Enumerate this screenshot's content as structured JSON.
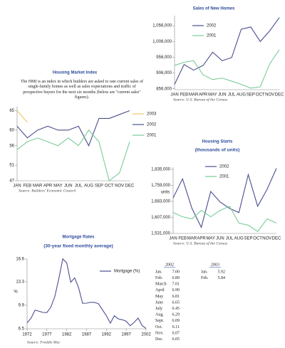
{
  "chart_data": [
    {
      "type": "line",
      "title": "Sales of New Homes",
      "source": "Source: U.S. Bureau of the Census",
      "categories": [
        "JAN",
        "FEB",
        "MAR",
        "APR",
        "MAY",
        "JUN",
        "JUL",
        "AUG",
        "SEP",
        "OCT",
        "NOV",
        "DEC"
      ],
      "series": [
        {
          "name": "2002",
          "color": "#4b4f8e",
          "values": [
            870000,
            933000,
            915000,
            930000,
            972000,
            945000,
            955000,
            1045000,
            1052000,
            1006000,
            1040000,
            1082000
          ]
        },
        {
          "name": "2001",
          "color": "#79cc95",
          "values": [
            930000,
            940000,
            945000,
            900000,
            885000,
            890000,
            880000,
            870000,
            858000,
            862000,
            935000,
            980000
          ]
        }
      ],
      "ylim": [
        853000,
        1088000
      ],
      "yticks": [
        {
          "value": 856000,
          "label": "856,000"
        },
        {
          "value": 906000,
          "label": "906,000"
        },
        {
          "value": 956000,
          "label": "956,000"
        },
        {
          "value": 1006000,
          "label": "1,006,000"
        },
        {
          "value": 1056000,
          "label": "1,056,000"
        }
      ],
      "legend": "top-left"
    },
    {
      "type": "line",
      "title": "Housing Market Index",
      "source": "Source: Builders' Economic Council",
      "description": "The HMI is an index in which builders are asked to rate current sales of single-family homes as well as sales expectations and traffic of prospective buyers for the next six months (below are \"current sales\" figures).",
      "categories": [
        "JAN",
        "FEB",
        "MAR",
        "APR",
        "MAY",
        "JUN",
        "JUL",
        "AUG",
        "SEP",
        "OCT",
        "NOV",
        "DEC"
      ],
      "series": [
        {
          "name": "2003",
          "color": "#f2c46c",
          "values": [
            65,
            62,
            null,
            null,
            null,
            null,
            null,
            null,
            null,
            null,
            null,
            null
          ]
        },
        {
          "name": "2002",
          "color": "#4b4f8e",
          "values": [
            61,
            58,
            60,
            61,
            60,
            60,
            61,
            56,
            63,
            63,
            64,
            65
          ]
        },
        {
          "name": "2001",
          "color": "#79cc95",
          "values": [
            55,
            57,
            58,
            57,
            56,
            58,
            56,
            60,
            57,
            47,
            49,
            57
          ]
        }
      ],
      "ylim": [
        47,
        66
      ],
      "yticks": [
        47,
        51,
        56,
        60,
        65
      ],
      "legend": "right"
    },
    {
      "type": "line",
      "title": "Housing Starts",
      "subtitle": "(thousands of units)",
      "y_label": "units",
      "source": "Source: U.S. Bureau of the Census",
      "categories": [
        "JAN",
        "FEB",
        "MAR",
        "APR",
        "MAY",
        "JUN",
        "JUL",
        "AUG",
        "SEP",
        "OCT",
        "NOV",
        "DEC"
      ],
      "series": [
        {
          "name": "2002",
          "color": "#4b4f8e",
          "values": [
            1700000,
            1790000,
            1650000,
            1560000,
            1730000,
            1680000,
            1650000,
            1630000,
            1810000,
            1660000,
            1740000,
            1840000
          ]
        },
        {
          "name": "2001",
          "color": "#79cc95",
          "values": [
            1630000,
            1610000,
            1600000,
            1640000,
            1610000,
            1640000,
            1660000,
            1580000,
            1570000,
            1540000,
            1600000,
            1580000
          ]
        }
      ],
      "ylim": [
        1531000,
        1845000
      ],
      "yticks": [
        {
          "value": 1531000,
          "label": "1,531,000"
        },
        {
          "value": 1607000,
          "label": "1,607,000"
        },
        {
          "value": 1683000,
          "label": "1,683,000"
        },
        {
          "value": 1759000,
          "label": "1,759,000"
        },
        {
          "value": 1835000,
          "label": "1,835,000"
        }
      ],
      "legend": "top-left"
    },
    {
      "type": "line",
      "title": "Mortgage Rates",
      "subtitle": "(30-year fixed monthly average)",
      "y_label": "%",
      "source": "Source: Freddie Mac",
      "x": [
        1972,
        1973,
        1974,
        1975,
        1976,
        1977,
        1978,
        1979,
        1980,
        1981,
        1982,
        1983,
        1984,
        1985,
        1986,
        1987,
        1988,
        1989,
        1990,
        1991,
        1992,
        1993,
        1994,
        1995,
        1996,
        1997,
        1998,
        1999,
        2000,
        2001,
        2002
      ],
      "series": [
        {
          "name": "Mortgage (%)",
          "color": "#4b4f8e",
          "values": [
            7.38,
            8.04,
            9.19,
            9.05,
            8.87,
            8.85,
            9.64,
            11.2,
            13.74,
            16.63,
            16.04,
            13.24,
            13.88,
            12.43,
            10.19,
            10.21,
            10.34,
            10.32,
            10.13,
            9.25,
            8.39,
            7.31,
            8.38,
            7.93,
            7.81,
            7.6,
            6.94,
            7.44,
            8.05,
            6.97,
            6.54
          ]
        }
      ],
      "xlim": [
        1972,
        2002
      ],
      "xticks": [
        1972,
        1977,
        1982,
        1987,
        1992,
        1997,
        2002
      ],
      "ylim": [
        6.5,
        16.6
      ],
      "yticks": [
        6.5,
        9.9,
        13.3,
        16.6
      ],
      "legend": "top-right"
    }
  ],
  "rates_table": {
    "columns": [
      {
        "year": "2002",
        "rows": [
          [
            "Jan.",
            "7.00"
          ],
          [
            "Feb.",
            "6.89"
          ],
          [
            "March",
            "7.01"
          ],
          [
            "April",
            "6.99"
          ],
          [
            "May",
            "6.81"
          ],
          [
            "June",
            "6.65"
          ],
          [
            "July",
            "6.45"
          ],
          [
            "Aug.",
            "6.29"
          ],
          [
            "Sept.",
            "6.09"
          ],
          [
            "Oct.",
            "6.11"
          ],
          [
            "Nov.",
            "6.07"
          ],
          [
            "Dec.",
            "6.05"
          ]
        ]
      },
      {
        "year": "2003",
        "rows": [
          [
            "Jan.",
            "5.92"
          ],
          [
            "Feb.",
            "5.84"
          ]
        ]
      }
    ]
  }
}
